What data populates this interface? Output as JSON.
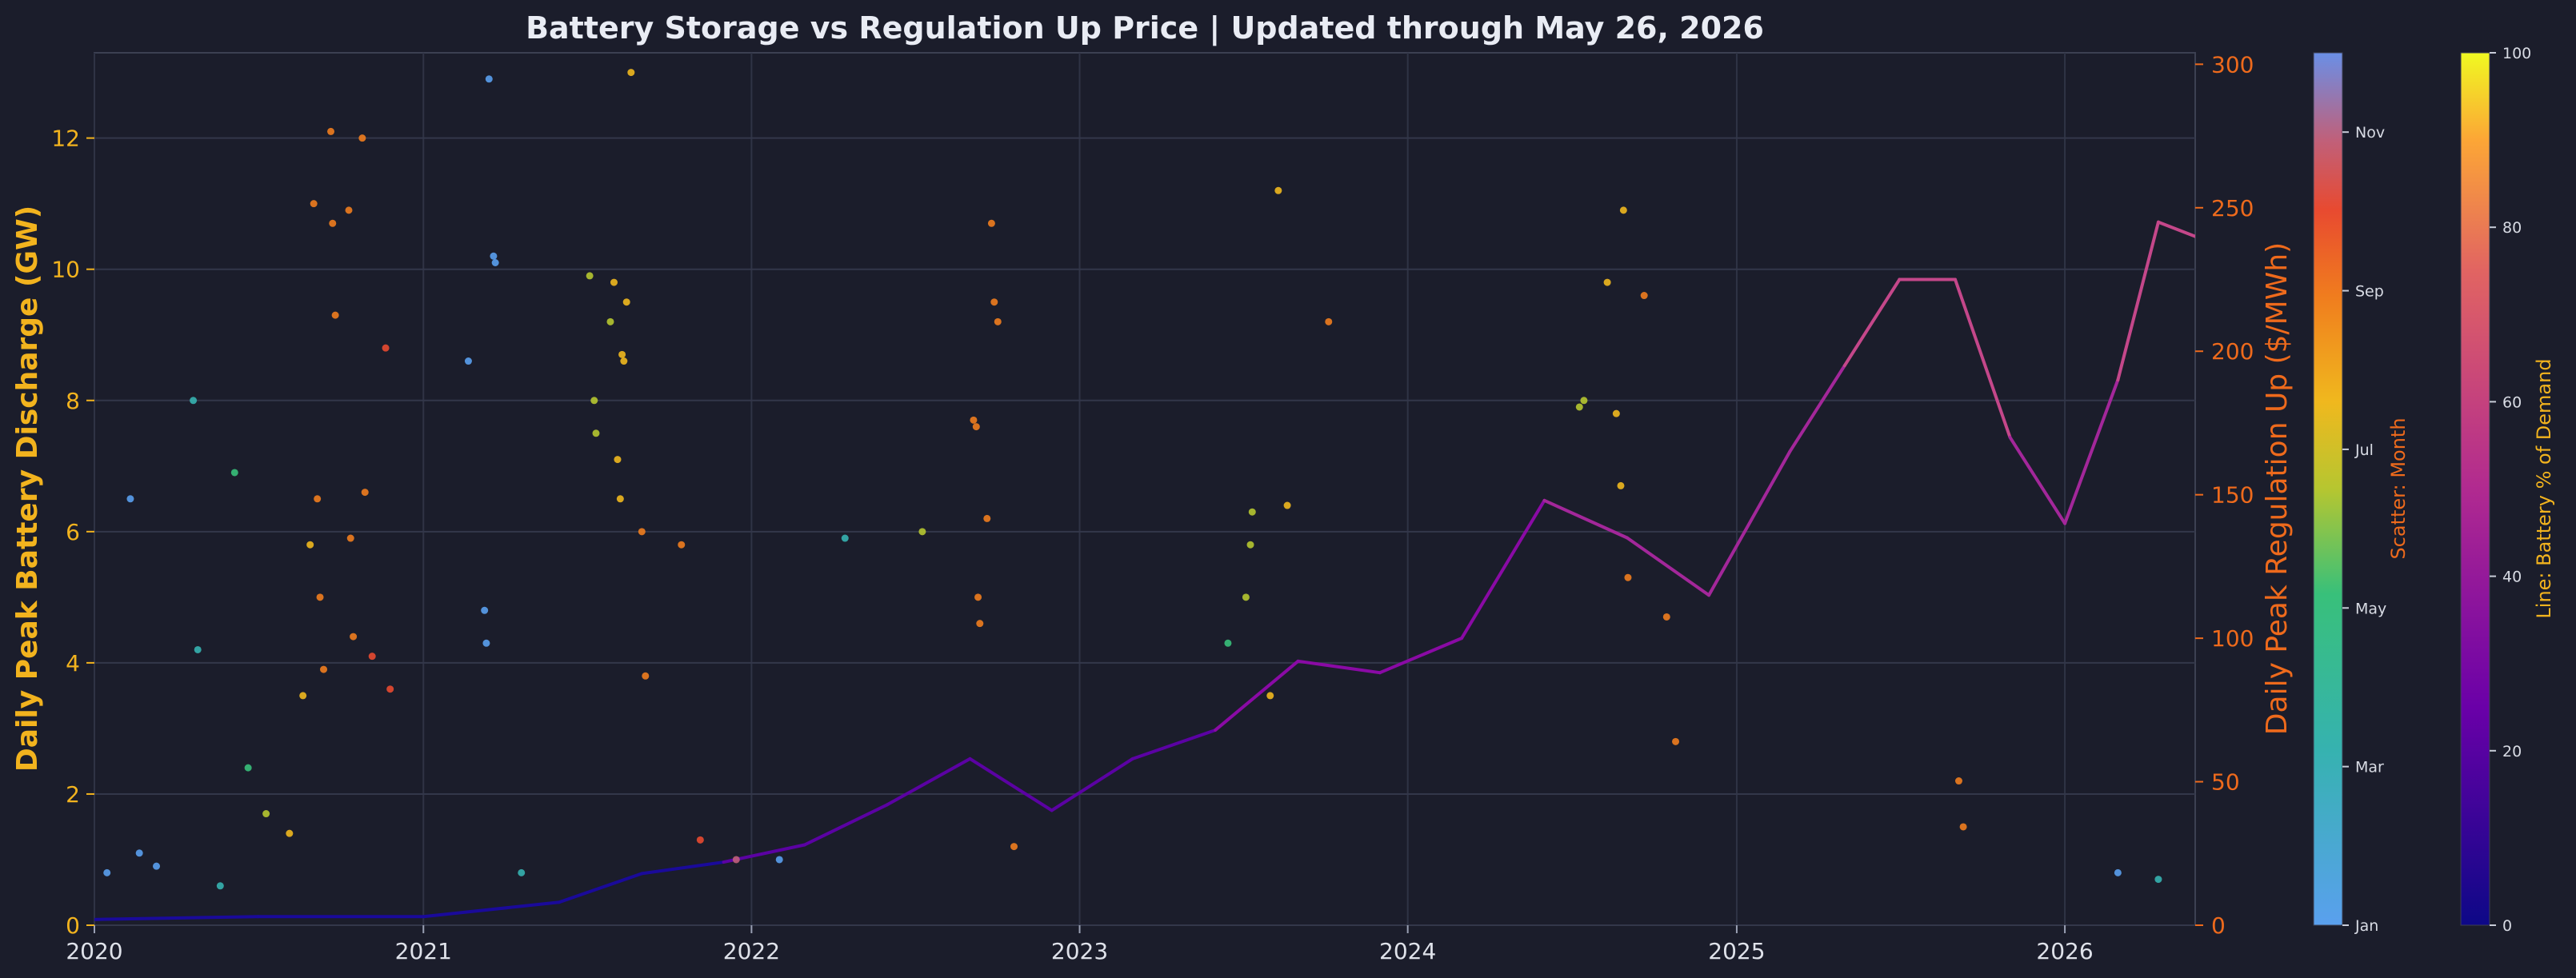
{
  "chart_data": {
    "type": "scatter",
    "title": "Battery Storage vs Regulation Up Price  |  Updated through May 26, 2026",
    "x_axis": {
      "ticks": [
        "2020",
        "2021",
        "2022",
        "2023",
        "2024",
        "2025",
        "2026"
      ],
      "range": [
        "2020-01-01",
        "2026-05-26"
      ]
    },
    "y_left": {
      "label": "Daily Peak Battery Discharge (GW)",
      "ticks": [
        "0",
        "2",
        "4",
        "6",
        "8",
        "10",
        "12"
      ],
      "range": [
        0,
        13.3
      ],
      "color": "#f2b31e"
    },
    "y_right": {
      "label": "Daily Peak Regulation Up ($/MWh)",
      "ticks": [
        "0",
        "50",
        "100",
        "150",
        "200",
        "250",
        "300"
      ],
      "range": [
        0,
        304
      ],
      "color": "#ee6a1c"
    },
    "colorbar_month": {
      "label": "Scatter: Month",
      "ticks": [
        "Jan",
        "Mar",
        "May",
        "Jul",
        "Sep",
        "Nov"
      ],
      "label_color": "#ee6a1c"
    },
    "colorbar_share": {
      "label": "Line: Battery % of Demand",
      "ticks": [
        "0",
        "20",
        "40",
        "60",
        "80",
        "100"
      ],
      "label_color": "#f2b31e"
    },
    "grid": true,
    "series": [
      {
        "type": "scatter",
        "color_by": "month",
        "points": [
          [
            "2020-01-15",
            0.8
          ],
          [
            "2020-02-10",
            6.5
          ],
          [
            "2020-02-20",
            1.1
          ],
          [
            "2020-03-10",
            0.9
          ],
          [
            "2020-04-20",
            8.0
          ],
          [
            "2020-04-25",
            4.2
          ],
          [
            "2020-05-20",
            0.6
          ],
          [
            "2020-06-05",
            6.9
          ],
          [
            "2020-06-20",
            2.4
          ],
          [
            "2020-07-10",
            1.7
          ],
          [
            "2020-08-05",
            1.4
          ],
          [
            "2020-08-20",
            3.5
          ],
          [
            "2020-08-28",
            5.8
          ],
          [
            "2020-09-01",
            11.0
          ],
          [
            "2020-09-05",
            6.5
          ],
          [
            "2020-09-08",
            5.0
          ],
          [
            "2020-09-12",
            3.9
          ],
          [
            "2020-09-20",
            12.1
          ],
          [
            "2020-09-22",
            10.7
          ],
          [
            "2020-09-25",
            9.3
          ],
          [
            "2020-10-10",
            10.9
          ],
          [
            "2020-10-12",
            5.9
          ],
          [
            "2020-10-15",
            4.4
          ],
          [
            "2020-10-25",
            12.0
          ],
          [
            "2020-10-28",
            6.6
          ],
          [
            "2020-11-05",
            4.1
          ],
          [
            "2020-11-20",
            8.8
          ],
          [
            "2020-11-25",
            3.6
          ],
          [
            "2021-02-20",
            8.6
          ],
          [
            "2021-03-15",
            12.9
          ],
          [
            "2021-03-20",
            10.2
          ],
          [
            "2021-03-22",
            10.1
          ],
          [
            "2021-03-10",
            4.8
          ],
          [
            "2021-03-12",
            4.3
          ],
          [
            "2021-04-20",
            0.8
          ],
          [
            "2021-07-05",
            9.9
          ],
          [
            "2021-07-10",
            8.0
          ],
          [
            "2021-07-12",
            7.5
          ],
          [
            "2021-07-28",
            9.2
          ],
          [
            "2021-08-01",
            9.8
          ],
          [
            "2021-08-10",
            8.7
          ],
          [
            "2021-08-15",
            9.5
          ],
          [
            "2021-08-12",
            8.6
          ],
          [
            "2021-08-05",
            7.1
          ],
          [
            "2021-08-08",
            6.5
          ],
          [
            "2021-08-20",
            13.0
          ],
          [
            "2021-09-01",
            6.0
          ],
          [
            "2021-09-05",
            3.8
          ],
          [
            "2021-10-15",
            5.8
          ],
          [
            "2021-11-05",
            1.3
          ],
          [
            "2021-12-15",
            1.0
          ],
          [
            "2022-02-01",
            1.0
          ],
          [
            "2022-04-15",
            5.9
          ],
          [
            "2022-07-10",
            6.0
          ],
          [
            "2022-09-05",
            7.7
          ],
          [
            "2022-09-08",
            7.6
          ],
          [
            "2022-09-10",
            5.0
          ],
          [
            "2022-09-12",
            4.6
          ],
          [
            "2022-09-20",
            6.2
          ],
          [
            "2022-09-25",
            10.7
          ],
          [
            "2022-09-28",
            9.5
          ],
          [
            "2022-10-02",
            9.2
          ],
          [
            "2022-10-20",
            1.2
          ],
          [
            "2023-06-15",
            4.3
          ],
          [
            "2023-07-05",
            5.0
          ],
          [
            "2023-07-10",
            5.8
          ],
          [
            "2023-07-12",
            6.3
          ],
          [
            "2023-08-01",
            3.5
          ],
          [
            "2023-08-10",
            11.2
          ],
          [
            "2023-08-20",
            6.4
          ],
          [
            "2023-10-05",
            9.2
          ],
          [
            "2024-07-10",
            7.9
          ],
          [
            "2024-07-15",
            8.0
          ],
          [
            "2024-08-10",
            9.8
          ],
          [
            "2024-08-20",
            7.8
          ],
          [
            "2024-08-25",
            6.7
          ],
          [
            "2024-08-28",
            10.9
          ],
          [
            "2024-09-02",
            5.3
          ],
          [
            "2024-09-20",
            9.6
          ],
          [
            "2024-10-15",
            4.7
          ],
          [
            "2024-10-25",
            2.8
          ],
          [
            "2025-09-05",
            2.2
          ],
          [
            "2025-09-10",
            1.5
          ],
          [
            "2026-03-01",
            0.8
          ],
          [
            "2026-04-15",
            0.7
          ]
        ]
      },
      {
        "type": "line",
        "axis": "right",
        "color_by": "battery_share_pct",
        "points": [
          [
            "2020-01-01",
            2
          ],
          [
            "2020-07-01",
            3
          ],
          [
            "2021-01-01",
            3
          ],
          [
            "2021-06-01",
            8
          ],
          [
            "2021-09-01",
            18
          ],
          [
            "2021-12-01",
            22
          ],
          [
            "2022-03-01",
            28
          ],
          [
            "2022-06-01",
            42
          ],
          [
            "2022-09-01",
            58
          ],
          [
            "2022-12-01",
            40
          ],
          [
            "2023-03-01",
            58
          ],
          [
            "2023-06-01",
            68
          ],
          [
            "2023-09-01",
            92
          ],
          [
            "2023-12-01",
            88
          ],
          [
            "2024-03-01",
            100
          ],
          [
            "2024-06-01",
            148
          ],
          [
            "2024-09-01",
            135
          ],
          [
            "2024-12-01",
            115
          ],
          [
            "2025-03-01",
            165
          ],
          [
            "2025-05-01",
            195
          ],
          [
            "2025-07-01",
            225
          ],
          [
            "2025-09-01",
            225
          ],
          [
            "2025-11-01",
            170
          ],
          [
            "2026-01-01",
            140
          ],
          [
            "2026-03-01",
            190
          ],
          [
            "2026-04-15",
            245
          ],
          [
            "2026-05-26",
            240
          ]
        ]
      }
    ]
  }
}
